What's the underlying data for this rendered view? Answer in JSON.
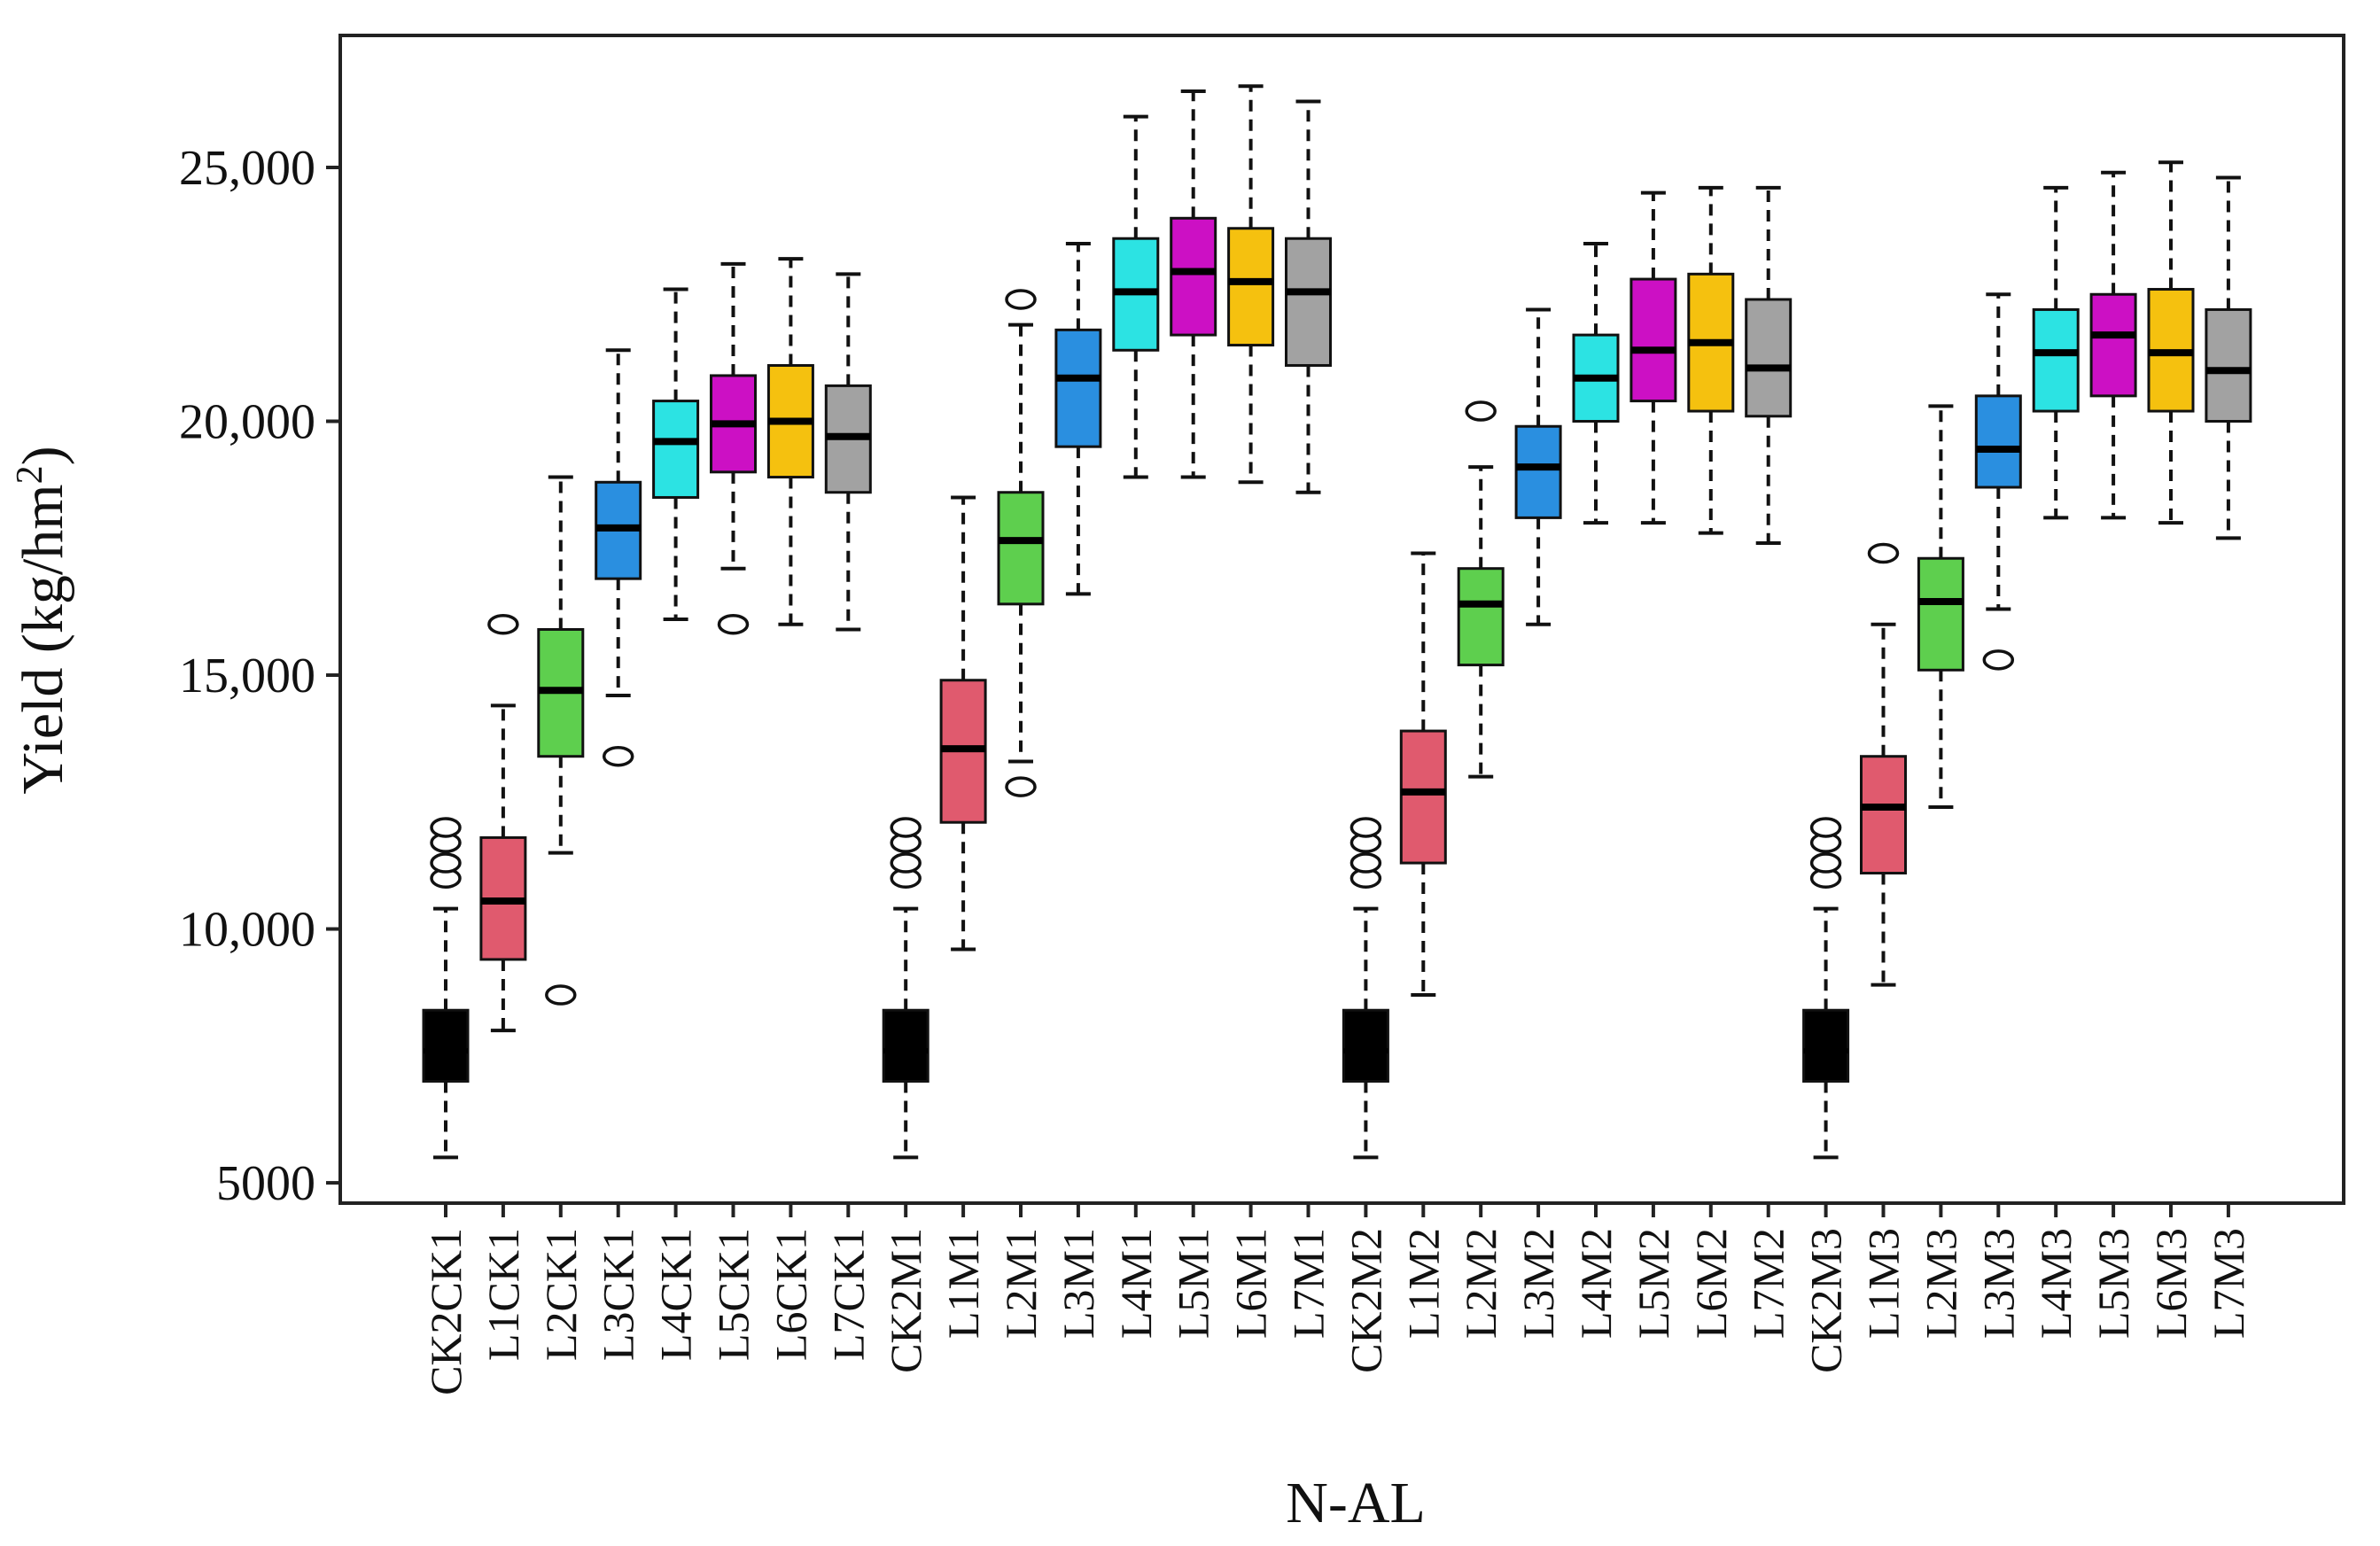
{
  "chart_data": {
    "type": "boxplot",
    "title": "",
    "xlabel": "N-AL",
    "ylabel": "Yield (kg/hm2)",
    "ylabel_parts": {
      "main": "Yield (kg/hm",
      "sup": "2",
      "close": ")"
    },
    "ylim": [
      4600,
      27600
    ],
    "yticks": [
      5000,
      10000,
      15000,
      20000,
      25000
    ],
    "ytick_labels": [
      "5000",
      "10,000",
      "15,000",
      "20,000",
      "25,000"
    ],
    "grid": false,
    "legend": "none",
    "colors": {
      "CK2": "#000000",
      "L1": "#e05a6e",
      "L2": "#5ecf4e",
      "L3": "#2a8fe0",
      "L4": "#2ce3e3",
      "L5": "#cc10c4",
      "L6": "#f5c10f",
      "L7": "#a2a2a2"
    },
    "boxes": [
      {
        "label": "CK2CK1",
        "group": "CK2",
        "min": 5500,
        "q1": 7000,
        "median": 7600,
        "q3": 8400,
        "max": 10400,
        "outliers": [
          11000,
          11300,
          11700,
          12000
        ]
      },
      {
        "label": "L1CK1",
        "group": "L1",
        "min": 8000,
        "q1": 9400,
        "median": 10550,
        "q3": 11800,
        "max": 14400,
        "outliers": [
          16000
        ]
      },
      {
        "label": "L2CK1",
        "group": "L2",
        "min": 11500,
        "q1": 13400,
        "median": 14700,
        "q3": 15900,
        "max": 18900,
        "outliers": [
          8700
        ]
      },
      {
        "label": "L3CK1",
        "group": "L3",
        "min": 14600,
        "q1": 16900,
        "median": 17900,
        "q3": 18800,
        "max": 21400,
        "outliers": [
          13400
        ]
      },
      {
        "label": "L4CK1",
        "group": "L4",
        "min": 16100,
        "q1": 18500,
        "median": 19600,
        "q3": 20400,
        "max": 22600,
        "outliers": []
      },
      {
        "label": "L5CK1",
        "group": "L5",
        "min": 17100,
        "q1": 19000,
        "median": 19950,
        "q3": 20900,
        "max": 23100,
        "outliers": [
          16000
        ]
      },
      {
        "label": "L6CK1",
        "group": "L6",
        "min": 16000,
        "q1": 18900,
        "median": 20000,
        "q3": 21100,
        "max": 23200,
        "outliers": []
      },
      {
        "label": "L7CK1",
        "group": "L7",
        "min": 15900,
        "q1": 18600,
        "median": 19700,
        "q3": 20700,
        "max": 22900,
        "outliers": []
      },
      {
        "label": "CK2M1",
        "group": "CK2",
        "min": 5500,
        "q1": 7000,
        "median": 7600,
        "q3": 8400,
        "max": 10400,
        "outliers": [
          11000,
          11300,
          11700,
          12000
        ]
      },
      {
        "label": "L1M1",
        "group": "L1",
        "min": 9600,
        "q1": 12100,
        "median": 13550,
        "q3": 14900,
        "max": 18500,
        "outliers": []
      },
      {
        "label": "L2M1",
        "group": "L2",
        "min": 13300,
        "q1": 16400,
        "median": 17650,
        "q3": 18600,
        "max": 21900,
        "outliers": [
          12800,
          22400
        ]
      },
      {
        "label": "L3M1",
        "group": "L3",
        "min": 16600,
        "q1": 19500,
        "median": 20850,
        "q3": 21800,
        "max": 23500,
        "outliers": []
      },
      {
        "label": "L4M1",
        "group": "L4",
        "min": 18900,
        "q1": 21400,
        "median": 22550,
        "q3": 23600,
        "max": 26000,
        "outliers": []
      },
      {
        "label": "L5M1",
        "group": "L5",
        "min": 18900,
        "q1": 21700,
        "median": 22950,
        "q3": 24000,
        "max": 26500,
        "outliers": []
      },
      {
        "label": "L6M1",
        "group": "L6",
        "min": 18800,
        "q1": 21500,
        "median": 22750,
        "q3": 23800,
        "max": 26600,
        "outliers": []
      },
      {
        "label": "L7M1",
        "group": "L7",
        "min": 18600,
        "q1": 21100,
        "median": 22550,
        "q3": 23600,
        "max": 26300,
        "outliers": []
      },
      {
        "label": "CK2M2",
        "group": "CK2",
        "min": 5500,
        "q1": 7000,
        "median": 7600,
        "q3": 8400,
        "max": 10400,
        "outliers": [
          11000,
          11300,
          11700,
          12000
        ]
      },
      {
        "label": "L1M2",
        "group": "L1",
        "min": 8700,
        "q1": 11300,
        "median": 12700,
        "q3": 13900,
        "max": 17400,
        "outliers": []
      },
      {
        "label": "L2M2",
        "group": "L2",
        "min": 13000,
        "q1": 15200,
        "median": 16400,
        "q3": 17100,
        "max": 19100,
        "outliers": [
          20200
        ]
      },
      {
        "label": "L3M2",
        "group": "L3",
        "min": 16000,
        "q1": 18100,
        "median": 19100,
        "q3": 19900,
        "max": 22200,
        "outliers": []
      },
      {
        "label": "L4M2",
        "group": "L4",
        "min": 18000,
        "q1": 20000,
        "median": 20850,
        "q3": 21700,
        "max": 23500,
        "outliers": []
      },
      {
        "label": "L5M2",
        "group": "L5",
        "min": 18000,
        "q1": 20400,
        "median": 21400,
        "q3": 22800,
        "max": 24500,
        "outliers": []
      },
      {
        "label": "L6M2",
        "group": "L6",
        "min": 17800,
        "q1": 20200,
        "median": 21550,
        "q3": 22900,
        "max": 24600,
        "outliers": []
      },
      {
        "label": "L7M2",
        "group": "L7",
        "min": 17600,
        "q1": 20100,
        "median": 21050,
        "q3": 22400,
        "max": 24600,
        "outliers": []
      },
      {
        "label": "CK2M3",
        "group": "CK2",
        "min": 5500,
        "q1": 7000,
        "median": 7600,
        "q3": 8400,
        "max": 10400,
        "outliers": [
          11000,
          11300,
          11700,
          12000
        ]
      },
      {
        "label": "L1M3",
        "group": "L1",
        "min": 8900,
        "q1": 11100,
        "median": 12400,
        "q3": 13400,
        "max": 16000,
        "outliers": [
          17400
        ]
      },
      {
        "label": "L2M3",
        "group": "L2",
        "min": 12400,
        "q1": 15100,
        "median": 16450,
        "q3": 17300,
        "max": 20300,
        "outliers": []
      },
      {
        "label": "L3M3",
        "group": "L3",
        "min": 16300,
        "q1": 18700,
        "median": 19450,
        "q3": 20500,
        "max": 22500,
        "outliers": [
          15300
        ]
      },
      {
        "label": "L4M3",
        "group": "L4",
        "min": 18100,
        "q1": 20200,
        "median": 21350,
        "q3": 22200,
        "max": 24600,
        "outliers": []
      },
      {
        "label": "L5M3",
        "group": "L5",
        "min": 18100,
        "q1": 20500,
        "median": 21700,
        "q3": 22500,
        "max": 24900,
        "outliers": []
      },
      {
        "label": "L6M3",
        "group": "L6",
        "min": 18000,
        "q1": 20200,
        "median": 21350,
        "q3": 22600,
        "max": 25100,
        "outliers": []
      },
      {
        "label": "L7M3",
        "group": "L7",
        "min": 17700,
        "q1": 20000,
        "median": 21000,
        "q3": 22200,
        "max": 24800,
        "outliers": []
      }
    ]
  }
}
